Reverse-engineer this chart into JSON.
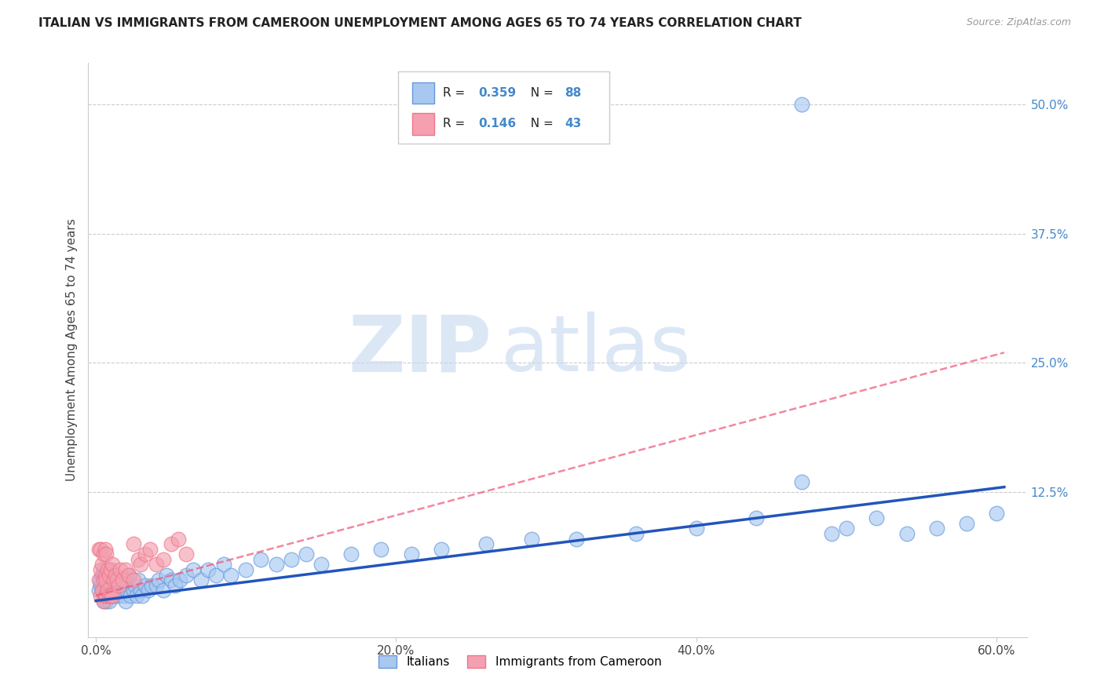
{
  "title": "ITALIAN VS IMMIGRANTS FROM CAMEROON UNEMPLOYMENT AMONG AGES 65 TO 74 YEARS CORRELATION CHART",
  "source": "Source: ZipAtlas.com",
  "ylabel": "Unemployment Among Ages 65 to 74 years",
  "xlim": [
    -0.005,
    0.62
  ],
  "ylim": [
    -0.015,
    0.54
  ],
  "xtick_labels": [
    "0.0%",
    "20.0%",
    "40.0%",
    "60.0%"
  ],
  "xtick_vals": [
    0.0,
    0.2,
    0.4,
    0.6
  ],
  "ytick_labels_right": [
    "12.5%",
    "25.0%",
    "37.5%",
    "50.0%"
  ],
  "ytick_vals_right": [
    0.125,
    0.25,
    0.375,
    0.5
  ],
  "italian_color": "#a8c8f0",
  "cameroon_color": "#f4a0b0",
  "italian_edge_color": "#6699dd",
  "cameroon_edge_color": "#ee7788",
  "italian_trend_color": "#2255bb",
  "cameroon_trend_color": "#ee5577",
  "italian_R": 0.359,
  "italian_N": 88,
  "cameroon_R": 0.146,
  "cameroon_N": 43,
  "legend_label_italian": "Italians",
  "legend_label_cameroon": "Immigrants from Cameroon",
  "watermark_zip": "ZIP",
  "watermark_atlas": "atlas",
  "background_color": "#ffffff",
  "italian_scatter_x": [
    0.002,
    0.003,
    0.003,
    0.004,
    0.004,
    0.005,
    0.005,
    0.005,
    0.005,
    0.006,
    0.006,
    0.007,
    0.007,
    0.007,
    0.008,
    0.008,
    0.008,
    0.009,
    0.009,
    0.01,
    0.01,
    0.01,
    0.011,
    0.011,
    0.012,
    0.012,
    0.013,
    0.013,
    0.014,
    0.015,
    0.015,
    0.016,
    0.017,
    0.018,
    0.019,
    0.02,
    0.02,
    0.021,
    0.022,
    0.023,
    0.025,
    0.026,
    0.027,
    0.028,
    0.03,
    0.031,
    0.033,
    0.035,
    0.037,
    0.04,
    0.042,
    0.045,
    0.047,
    0.05,
    0.053,
    0.056,
    0.06,
    0.065,
    0.07,
    0.075,
    0.08,
    0.085,
    0.09,
    0.1,
    0.11,
    0.12,
    0.13,
    0.14,
    0.15,
    0.17,
    0.19,
    0.21,
    0.23,
    0.26,
    0.29,
    0.32,
    0.36,
    0.4,
    0.44,
    0.49,
    0.5,
    0.52,
    0.54,
    0.56,
    0.58,
    0.6,
    0.47,
    0.47
  ],
  "italian_scatter_y": [
    0.03,
    0.035,
    0.04,
    0.03,
    0.045,
    0.02,
    0.03,
    0.04,
    0.05,
    0.025,
    0.04,
    0.02,
    0.03,
    0.045,
    0.025,
    0.035,
    0.05,
    0.02,
    0.04,
    0.025,
    0.035,
    0.05,
    0.025,
    0.04,
    0.03,
    0.045,
    0.025,
    0.04,
    0.03,
    0.025,
    0.04,
    0.03,
    0.035,
    0.04,
    0.025,
    0.02,
    0.04,
    0.03,
    0.045,
    0.025,
    0.03,
    0.035,
    0.025,
    0.04,
    0.03,
    0.025,
    0.035,
    0.03,
    0.035,
    0.035,
    0.04,
    0.03,
    0.045,
    0.04,
    0.035,
    0.04,
    0.045,
    0.05,
    0.04,
    0.05,
    0.045,
    0.055,
    0.045,
    0.05,
    0.06,
    0.055,
    0.06,
    0.065,
    0.055,
    0.065,
    0.07,
    0.065,
    0.07,
    0.075,
    0.08,
    0.08,
    0.085,
    0.09,
    0.1,
    0.085,
    0.09,
    0.1,
    0.085,
    0.09,
    0.095,
    0.105,
    0.135,
    0.5
  ],
  "cameroon_scatter_x": [
    0.002,
    0.002,
    0.003,
    0.003,
    0.003,
    0.004,
    0.004,
    0.005,
    0.005,
    0.005,
    0.006,
    0.006,
    0.006,
    0.007,
    0.007,
    0.007,
    0.008,
    0.008,
    0.009,
    0.009,
    0.01,
    0.01,
    0.011,
    0.011,
    0.012,
    0.013,
    0.014,
    0.015,
    0.016,
    0.018,
    0.02,
    0.022,
    0.025,
    0.025,
    0.028,
    0.03,
    0.033,
    0.036,
    0.04,
    0.045,
    0.05,
    0.055,
    0.06
  ],
  "cameroon_scatter_y": [
    0.04,
    0.07,
    0.025,
    0.05,
    0.07,
    0.03,
    0.055,
    0.02,
    0.04,
    0.065,
    0.025,
    0.045,
    0.07,
    0.025,
    0.04,
    0.065,
    0.03,
    0.05,
    0.025,
    0.045,
    0.025,
    0.05,
    0.025,
    0.055,
    0.04,
    0.045,
    0.04,
    0.035,
    0.05,
    0.04,
    0.05,
    0.045,
    0.04,
    0.075,
    0.06,
    0.055,
    0.065,
    0.07,
    0.055,
    0.06,
    0.075,
    0.08,
    0.065
  ],
  "italian_trend_x0": 0.0,
  "italian_trend_x1": 0.605,
  "italian_trend_y0": 0.02,
  "italian_trend_y1": 0.13,
  "cameroon_trend_x0": 0.0,
  "cameroon_trend_x1": 0.605,
  "cameroon_trend_y0": 0.025,
  "cameroon_trend_y1": 0.26
}
